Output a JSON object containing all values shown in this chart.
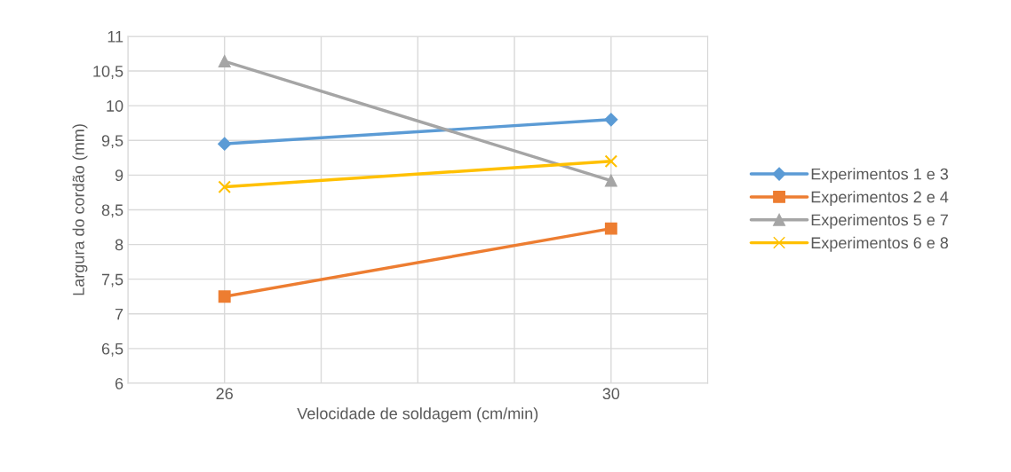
{
  "chart_data": {
    "type": "line",
    "xlabel": "Velocidade de soldagem (cm/min)",
    "ylabel": "Largura do cordão (mm)",
    "x": [
      26,
      30
    ],
    "series": [
      {
        "name": "Experimentos 1 e 3",
        "color": "#5b9bd5",
        "marker": "diamond",
        "values": [
          9.45,
          9.8
        ]
      },
      {
        "name": "Experimentos 2 e 4",
        "color": "#ed7d31",
        "marker": "square",
        "values": [
          7.25,
          8.23
        ]
      },
      {
        "name": "Experimentos 5 e 7",
        "color": "#a5a5a5",
        "marker": "triangle",
        "values": [
          10.64,
          8.92
        ]
      },
      {
        "name": "Experimentos 6 e 8",
        "color": "#ffc000",
        "marker": "cross",
        "values": [
          8.83,
          9.2
        ]
      }
    ],
    "xlim": [
      25,
      31
    ],
    "xticks": [
      {
        "value": 25,
        "label": null
      },
      26,
      {
        "value": 27,
        "label": null
      },
      {
        "value": 28,
        "label": null
      },
      {
        "value": 29,
        "label": null
      },
      30,
      {
        "value": 31,
        "label": null
      }
    ],
    "ylim": [
      6,
      11
    ],
    "yticks": [
      6,
      {
        "value": 6.5,
        "label": "6,5"
      },
      7,
      {
        "value": 7.5,
        "label": "7,5"
      },
      8,
      {
        "value": 8.5,
        "label": "8,5"
      },
      9,
      {
        "value": 9.5,
        "label": "9,5"
      },
      10,
      {
        "value": 10.5,
        "label": "10,5"
      },
      11
    ],
    "grid": true,
    "legend": "right",
    "line_style": "solid"
  }
}
